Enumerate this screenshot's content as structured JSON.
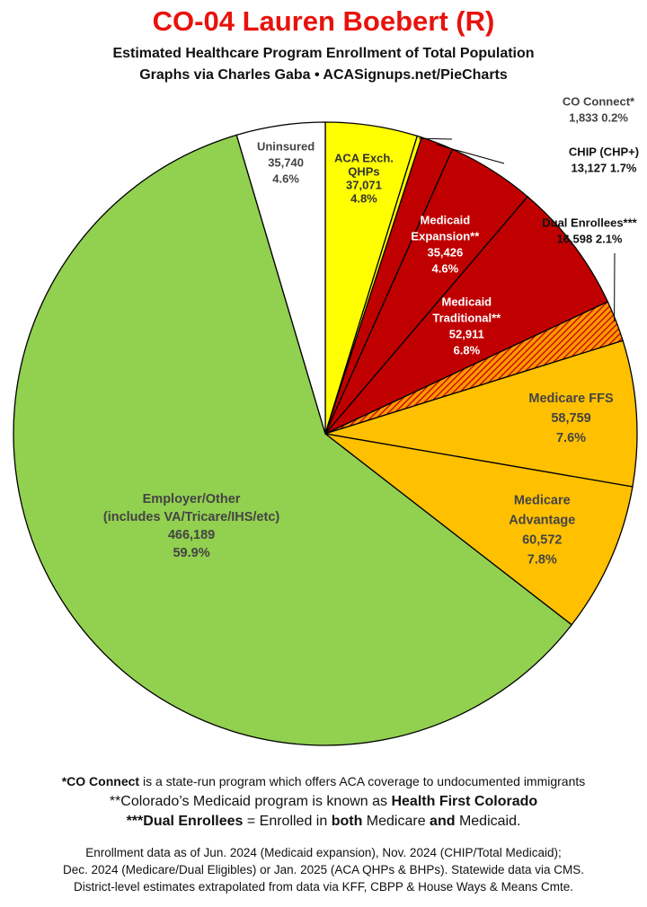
{
  "header": {
    "title": "CO-04 Lauren Boebert (R)",
    "subtitle1": "Estimated Healthcare Program Enrollment of Total Population",
    "subtitle2": "Graphs via Charles Gaba   •   ACASignups.net/PieCharts"
  },
  "chart_data": {
    "type": "pie",
    "slices": [
      {
        "key": "aca",
        "lines": [
          "ACA Exch.",
          "QHPs",
          "37,071",
          "4.8%"
        ],
        "value": 37071,
        "percent": 4.8,
        "color": "#ffff00",
        "text_color": "#333333"
      },
      {
        "key": "coconnect",
        "lines": [
          "CO Connect*",
          "1,833 0.2%"
        ],
        "value": 1833,
        "percent": 0.2,
        "color": "#ffff00",
        "text_color": "#444444"
      },
      {
        "key": "chip",
        "lines": [
          "CHIP (CHP+)",
          "13,127 1.7%"
        ],
        "value": 13127,
        "percent": 1.7,
        "color": "#c00000",
        "text_color": "#111111"
      },
      {
        "key": "medexp",
        "lines": [
          "Medicaid",
          "Expansion**",
          "35,426",
          "4.6%"
        ],
        "value": 35426,
        "percent": 4.6,
        "color": "#c00000",
        "text_color": "#ffffff"
      },
      {
        "key": "medtrad",
        "lines": [
          "Medicaid",
          "Traditional**",
          "52,911",
          "6.8%"
        ],
        "value": 52911,
        "percent": 6.8,
        "color": "#c00000",
        "text_color": "#ffffff"
      },
      {
        "key": "dual",
        "lines": [
          "Dual Enrollees***",
          "16,598 2.1%"
        ],
        "value": 16598,
        "percent": 2.1,
        "color": "#ff9900",
        "pattern": "hatch",
        "text_color": "#111111"
      },
      {
        "key": "ffs",
        "lines": [
          "Medicare FFS",
          "58,759",
          "7.6%"
        ],
        "value": 58759,
        "percent": 7.6,
        "color": "#ffc000",
        "text_color": "#444444"
      },
      {
        "key": "adv",
        "lines": [
          "Medicare",
          "Advantage",
          "60,572",
          "7.8%"
        ],
        "value": 60572,
        "percent": 7.8,
        "color": "#ffc000",
        "text_color": "#444444"
      },
      {
        "key": "employer",
        "lines": [
          "Employer/Other",
          "(includes VA/Tricare/IHS/etc)",
          "466,189",
          "59.9%"
        ],
        "value": 466189,
        "percent": 59.9,
        "color": "#92d050",
        "text_color": "#444444"
      },
      {
        "key": "uninsured",
        "lines": [
          "Uninsured",
          "35,740",
          "4.6%"
        ],
        "value": 35740,
        "percent": 4.6,
        "color": "#ffffff",
        "text_color": "#444444"
      }
    ]
  },
  "footnotes": {
    "fn1_bold": "*CO Connect",
    "fn1_rest": " is a state-run program which offers ACA coverage to undocumented immigrants",
    "fn2_pre": "**Colorado’s Medicaid program is known as ",
    "fn2_bold": "Health First Colorado",
    "fn3_bold1": "***Dual Enrollees",
    "fn3_mid1": " = Enrolled in ",
    "fn3_bold2": "both",
    "fn3_mid2": " Medicare ",
    "fn3_bold3": "and",
    "fn3_end": " Medicaid."
  },
  "sources": {
    "line1": "Enrollment data as of Jun. 2024 (Medicaid expansion), Nov. 2024 (CHIP/Total Medicaid);",
    "line2": "Dec. 2024 (Medicare/Dual Eligibles) or Jan. 2025 (ACA QHPs & BHPs). Statewide data via CMS.",
    "line3": "District-level estimates extrapolated from data via KFF, CBPP & House Ways & Means Cmte."
  }
}
